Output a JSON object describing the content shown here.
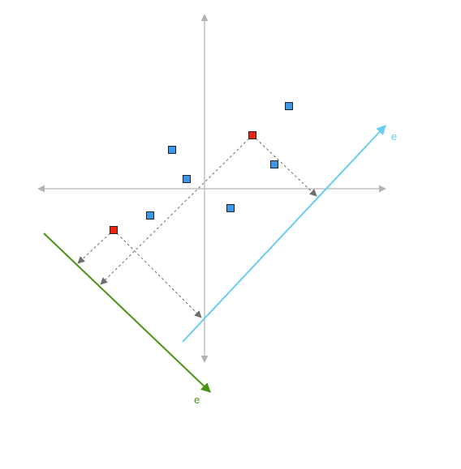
{
  "colors": {
    "axis": "#b3b3b3",
    "data_point": "#3d97e8",
    "highlight_point": "#e8250f",
    "vector_a": "#69ccf2",
    "vector_b": "#4a9210",
    "projection": "#6e6e6e"
  },
  "icons": {
    "projection_arrowhead": "arrow-head-icon"
  },
  "vectors": {
    "a": {
      "label": "e"
    },
    "b": {
      "label": "e"
    }
  }
}
